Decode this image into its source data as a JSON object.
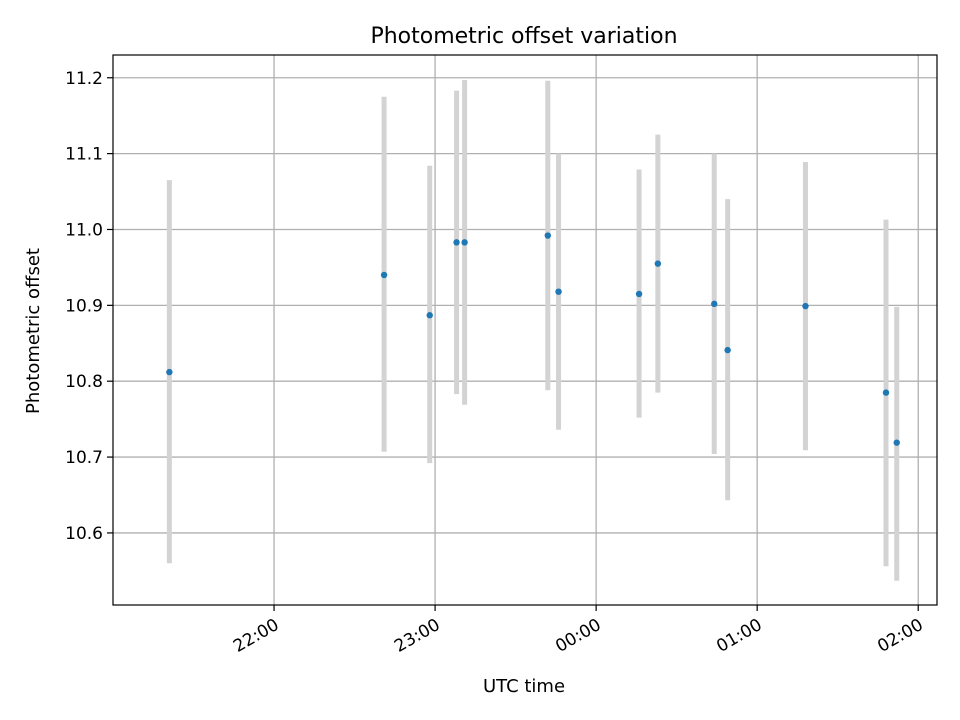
{
  "chart_data": {
    "type": "scatter",
    "title": "Photometric offset variation",
    "xlabel": "UTC time",
    "ylabel": "Photometric offset",
    "x_scale": "time",
    "grid": true,
    "x_ticks": [
      "22:00",
      "23:00",
      "00:00",
      "01:00",
      "02:00"
    ],
    "x_tick_rotation_deg": 30,
    "y_ticks": [
      "10.6",
      "10.7",
      "10.8",
      "10.9",
      "11.0",
      "11.1",
      "11.2"
    ],
    "xlim": [
      "21:00",
      "02:07"
    ],
    "ylim": [
      10.505,
      11.23
    ],
    "errorbar_color": "#d3d3d3",
    "point_color": "#1f77b4",
    "points": [
      {
        "x": "21:21",
        "y": 10.812,
        "ylow": 10.56,
        "yhigh": 11.065
      },
      {
        "x": "22:41",
        "y": 10.94,
        "ylow": 10.707,
        "yhigh": 11.175
      },
      {
        "x": "22:58",
        "y": 10.887,
        "ylow": 10.692,
        "yhigh": 11.084
      },
      {
        "x": "23:08",
        "y": 10.983,
        "ylow": 10.783,
        "yhigh": 11.183
      },
      {
        "x": "23:11",
        "y": 10.983,
        "ylow": 10.769,
        "yhigh": 11.197
      },
      {
        "x": "23:42",
        "y": 10.992,
        "ylow": 10.788,
        "yhigh": 11.196
      },
      {
        "x": "23:46",
        "y": 10.918,
        "ylow": 10.736,
        "yhigh": 11.1
      },
      {
        "x": "00:16",
        "y": 10.915,
        "ylow": 10.752,
        "yhigh": 11.079
      },
      {
        "x": "00:23",
        "y": 10.955,
        "ylow": 10.785,
        "yhigh": 11.125
      },
      {
        "x": "00:44",
        "y": 10.902,
        "ylow": 10.704,
        "yhigh": 11.1
      },
      {
        "x": "00:49",
        "y": 10.841,
        "ylow": 10.643,
        "yhigh": 11.04
      },
      {
        "x": "01:18",
        "y": 10.899,
        "ylow": 10.709,
        "yhigh": 11.089
      },
      {
        "x": "01:48",
        "y": 10.785,
        "ylow": 10.556,
        "yhigh": 11.013
      },
      {
        "x": "01:52",
        "y": 10.719,
        "ylow": 10.537,
        "yhigh": 10.898
      }
    ]
  }
}
